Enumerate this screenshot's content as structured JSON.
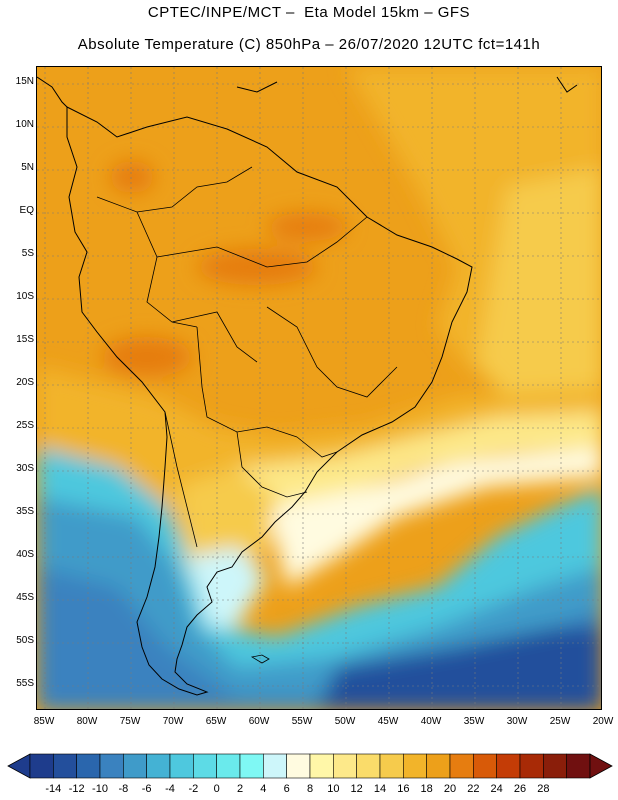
{
  "header": {
    "title_line1": "CPTEC/INPE/MCT –  Eta Model 15km – GFS",
    "title_line2": "Absolute Temperature (C) 850hPa – 26/07/2020 12UTC fct=141h"
  },
  "map": {
    "lat_ticks": [
      "15N",
      "10N",
      "5N",
      "EQ",
      "5S",
      "10S",
      "15S",
      "20S",
      "25S",
      "30S",
      "35S",
      "40S",
      "45S",
      "50S",
      "55S"
    ],
    "lon_ticks": [
      "85W",
      "80W",
      "75W",
      "70W",
      "65W",
      "60W",
      "55W",
      "50W",
      "45W",
      "40W",
      "35W",
      "30W",
      "25W",
      "20W"
    ]
  },
  "colorbar": {
    "labels": [
      "-14",
      "-12",
      "-10",
      "-8",
      "-6",
      "-4",
      "-2",
      "0",
      "2",
      "4",
      "6",
      "8",
      "10",
      "12",
      "14",
      "16",
      "18",
      "20",
      "22",
      "24",
      "26",
      "28"
    ],
    "colors": [
      "#1e3c8c",
      "#234f9c",
      "#2a66ad",
      "#3a82bf",
      "#3f9bc9",
      "#44b2d4",
      "#4ec8de",
      "#5ddbe6",
      "#6aeaec",
      "#7ff8f4",
      "#cdf6fa",
      "#fffbe0",
      "#fff7a8",
      "#fde98a",
      "#fadc6a",
      "#f6cb4c",
      "#f2b42a",
      "#eda01a",
      "#e67d10",
      "#d85a08",
      "#c43c06",
      "#a82a06",
      "#8a1e0a",
      "#701010"
    ]
  }
}
